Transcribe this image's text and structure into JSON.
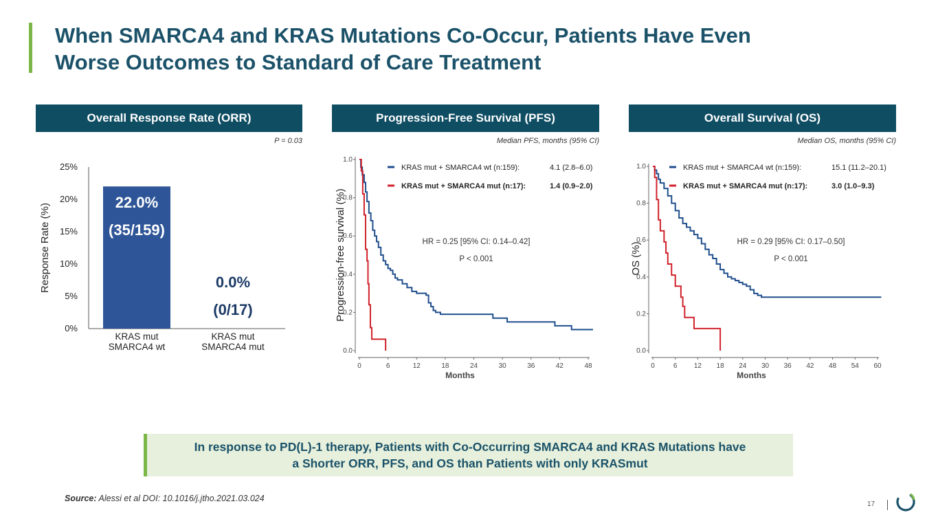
{
  "slide": {
    "title_line1": "When SMARCA4 and KRAS Mutations Co-Occur, Patients Have Even",
    "title_line2": "Worse Outcomes to Standard of Care Treatment",
    "page_number": "17",
    "source_label": "Source:",
    "source_text": " Alessi et al DOI: 10.1016/j.jtho.2021.03.024",
    "callout_line1": "In response to PD(L)-1 therapy, Patients with Co-Occurring SMARCA4 and KRAS Mutations have",
    "callout_line2": "a Shorter ORR, PFS, and OS than Patients with only KRASmut",
    "colors": {
      "navy": "#0f4d63",
      "green": "#7ab648",
      "blue_series": "#1f4e8c",
      "red_series": "#d0202a",
      "bar": "#2e5597"
    }
  },
  "panels": {
    "orr": {
      "header": "Overall Response Rate (ORR)",
      "note": "P = 0.03"
    },
    "pfs": {
      "header": "Progression-Free Survival (PFS)",
      "note": "Median PFS, months (95% CI)"
    },
    "os": {
      "header": "Overall Survival (OS)",
      "note": "Median OS, months (95% CI)"
    }
  },
  "chart_data": [
    {
      "type": "bar",
      "ylabel": "Response Rate  (%)",
      "ylim": [
        0,
        25
      ],
      "yticks": [
        "0%",
        "5%",
        "10%",
        "15%",
        "20%",
        "25%"
      ],
      "categories": [
        {
          "line1": "KRAS mut",
          "line2": "SMARCA4 wt"
        },
        {
          "line1": "KRAS mut",
          "line2": "SMARCA4 mut"
        }
      ],
      "values": [
        22.0,
        0.0
      ],
      "data_labels": [
        {
          "pct": "22.0%",
          "count": "(35/159)"
        },
        {
          "pct": "0.0%",
          "count": "(0/17)"
        }
      ]
    },
    {
      "type": "line",
      "title": "Progression-Free Survival (PFS)",
      "xlabel": "Months",
      "ylabel": "Progression-free survival (%)",
      "xlim": [
        0,
        48
      ],
      "ylim": [
        0,
        1
      ],
      "xticks": [
        "0",
        "6",
        "12",
        "18",
        "24",
        "30",
        "36",
        "42",
        "48"
      ],
      "yticks": [
        "0.0",
        "0.2",
        "0.4",
        "0.6",
        "0.8",
        "1.0"
      ],
      "hr_text": "HR = 0.25 [95% CI: 0.14–0.42]",
      "p_text": "P < 0.001",
      "series": [
        {
          "name": "KRAS mut + SMARCA4 wt (n:159):",
          "median": "4.1 (2.8–6.0)",
          "color": "#1f4e8c",
          "points": [
            [
              0,
              1.0
            ],
            [
              0.3,
              0.96
            ],
            [
              0.6,
              0.92
            ],
            [
              1,
              0.88
            ],
            [
              1.3,
              0.83
            ],
            [
              1.6,
              0.78
            ],
            [
              2,
              0.72
            ],
            [
              2.4,
              0.68
            ],
            [
              2.8,
              0.63
            ],
            [
              3.2,
              0.6
            ],
            [
              3.6,
              0.57
            ],
            [
              4,
              0.54
            ],
            [
              4.5,
              0.5
            ],
            [
              5,
              0.47
            ],
            [
              5.5,
              0.45
            ],
            [
              6,
              0.43
            ],
            [
              6.5,
              0.42
            ],
            [
              7,
              0.4
            ],
            [
              7.5,
              0.38
            ],
            [
              8,
              0.37
            ],
            [
              9,
              0.35
            ],
            [
              10,
              0.33
            ],
            [
              11,
              0.31
            ],
            [
              12,
              0.3
            ],
            [
              13,
              0.3
            ],
            [
              14,
              0.29
            ],
            [
              14.5,
              0.25
            ],
            [
              15,
              0.23
            ],
            [
              15.5,
              0.21
            ],
            [
              16,
              0.2
            ],
            [
              17,
              0.19
            ],
            [
              18,
              0.19
            ],
            [
              27,
              0.19
            ],
            [
              28,
              0.17
            ],
            [
              30,
              0.17
            ],
            [
              31,
              0.15
            ],
            [
              40,
              0.15
            ],
            [
              41,
              0.13
            ],
            [
              44,
              0.13
            ],
            [
              44.5,
              0.11
            ],
            [
              49,
              0.11
            ]
          ]
        },
        {
          "name": "KRAS mut + SMARCA4 mut (n:17):",
          "median": "1.4 (0.9–2.0)",
          "color": "#d0202a",
          "points": [
            [
              0,
              1.0
            ],
            [
              0.4,
              0.94
            ],
            [
              0.7,
              0.82
            ],
            [
              1,
              0.71
            ],
            [
              1.3,
              0.53
            ],
            [
              1.6,
              0.47
            ],
            [
              1.8,
              0.35
            ],
            [
              2,
              0.24
            ],
            [
              2.3,
              0.12
            ],
            [
              2.6,
              0.06
            ],
            [
              5.5,
              0.06
            ],
            [
              5.5,
              0.0
            ]
          ]
        }
      ]
    },
    {
      "type": "line",
      "title": "Overall Survival (OS)",
      "xlabel": "Months",
      "ylabel": "OS (%)",
      "xlim": [
        0,
        60
      ],
      "ylim": [
        0,
        1
      ],
      "xticks": [
        "0",
        "6",
        "12",
        "18",
        "24",
        "30",
        "36",
        "42",
        "48",
        "54",
        "60"
      ],
      "yticks": [
        "0.0",
        "0.2",
        "0.4",
        "0.6",
        "0.8",
        "1.0"
      ],
      "hr_text": "HR = 0.29 [95% CI: 0.17–0.50]",
      "p_text": "P < 0.001",
      "series": [
        {
          "name": "KRAS mut + SMARCA4 wt (n:159):",
          "median": "15.1 (11.2–20.1)",
          "color": "#1f4e8c",
          "points": [
            [
              0,
              1.0
            ],
            [
              0.5,
              0.98
            ],
            [
              1,
              0.96
            ],
            [
              1.5,
              0.93
            ],
            [
              2,
              0.91
            ],
            [
              3,
              0.88
            ],
            [
              4,
              0.84
            ],
            [
              5,
              0.8
            ],
            [
              6,
              0.76
            ],
            [
              7,
              0.72
            ],
            [
              8,
              0.69
            ],
            [
              9,
              0.67
            ],
            [
              10,
              0.65
            ],
            [
              11,
              0.63
            ],
            [
              12,
              0.61
            ],
            [
              13,
              0.58
            ],
            [
              14,
              0.55
            ],
            [
              15,
              0.52
            ],
            [
              16,
              0.5
            ],
            [
              17,
              0.47
            ],
            [
              18,
              0.44
            ],
            [
              19,
              0.42
            ],
            [
              20,
              0.4
            ],
            [
              21,
              0.39
            ],
            [
              22,
              0.38
            ],
            [
              23,
              0.37
            ],
            [
              24,
              0.36
            ],
            [
              25,
              0.35
            ],
            [
              26,
              0.33
            ],
            [
              27,
              0.31
            ],
            [
              28,
              0.3
            ],
            [
              29,
              0.29
            ],
            [
              32,
              0.29
            ],
            [
              61,
              0.29
            ]
          ]
        },
        {
          "name": "KRAS mut + SMARCA4 mut (n:17):",
          "median": "3.0 (1.0–9.3)",
          "color": "#d0202a",
          "points": [
            [
              0,
              1.0
            ],
            [
              0.5,
              0.94
            ],
            [
              1,
              0.82
            ],
            [
              1.5,
              0.71
            ],
            [
              2,
              0.65
            ],
            [
              3,
              0.59
            ],
            [
              3.5,
              0.53
            ],
            [
              4,
              0.47
            ],
            [
              5,
              0.41
            ],
            [
              6,
              0.35
            ],
            [
              7.5,
              0.29
            ],
            [
              8,
              0.24
            ],
            [
              8.5,
              0.18
            ],
            [
              11,
              0.12
            ],
            [
              18,
              0.12
            ],
            [
              18,
              0.0
            ]
          ]
        }
      ]
    }
  ]
}
